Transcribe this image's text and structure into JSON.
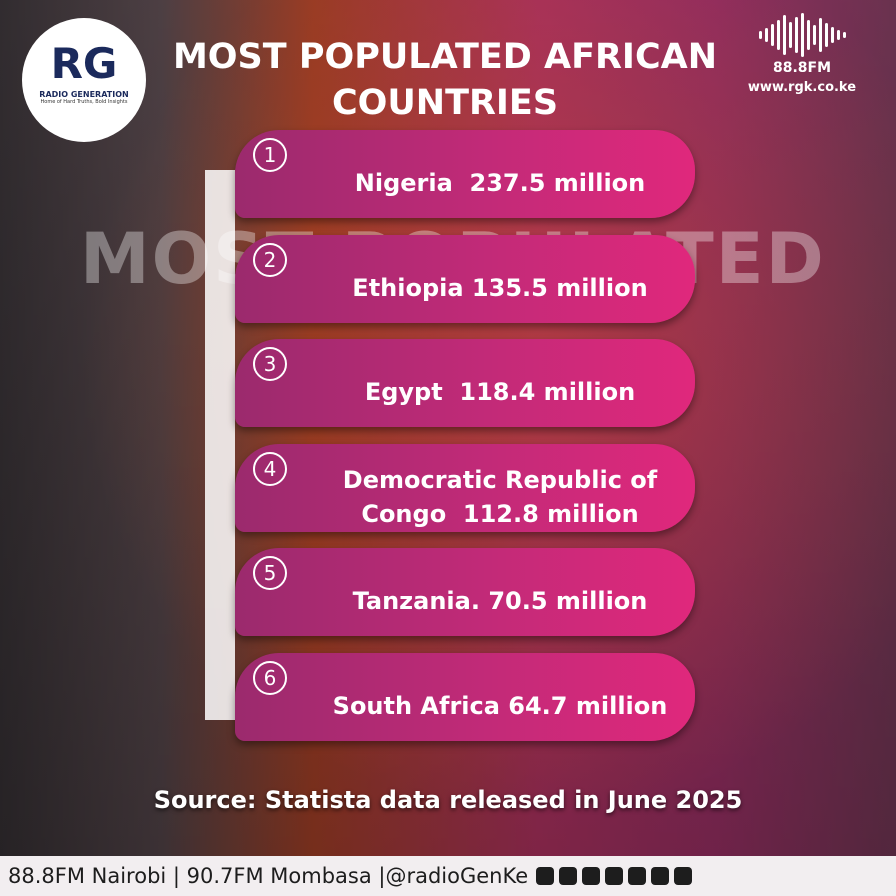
{
  "header": {
    "logo": "RG",
    "brand": "RADIO GENERATION",
    "tagline": "Home of Hard Truths, Bold Insights",
    "title": "MOST POPULATED AFRICAN COUNTRIES",
    "frequency": "88.8FM",
    "website": "www.rgk.co.ke"
  },
  "background_text": "MOST POPULATED",
  "items": [
    {
      "number": 1,
      "text": "Nigeria  237.5 million"
    },
    {
      "number": 2,
      "text": "Ethiopia 135.5 million"
    },
    {
      "number": 3,
      "text": "Egypt  118.4 million"
    },
    {
      "number": 4,
      "text": "Democratic Republic of Congo  112.8 million"
    },
    {
      "number": 5,
      "text": "Tanzania. 70.5 million"
    },
    {
      "number": 6,
      "text": "South Africa 64.7 million"
    }
  ],
  "source": "Source: Statista data released in June 2025",
  "footer": "88.8FM Nairobi | 90.7FM Mombasa |@radioGenKe"
}
